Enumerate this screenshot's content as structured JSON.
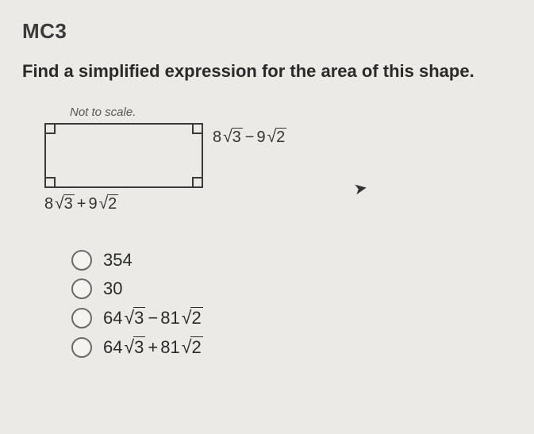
{
  "question_id": "MC3",
  "prompt": "Find a simplified expression for the area of this shape.",
  "figure": {
    "scale_label": "Not to scale.",
    "dim_right": {
      "a": "8",
      "rad_a": "3",
      "op": "−",
      "b": "9",
      "rad_b": "2"
    },
    "dim_bottom": {
      "a": "8",
      "rad_a": "3",
      "op": "+",
      "b": "9",
      "rad_b": "2"
    }
  },
  "options": [
    {
      "type": "plain",
      "text": "354"
    },
    {
      "type": "plain",
      "text": "30"
    },
    {
      "type": "expr",
      "a": "64",
      "rad_a": "3",
      "op": "−",
      "b": "81",
      "rad_b": "2"
    },
    {
      "type": "expr",
      "a": "64",
      "rad_a": "3",
      "op": "+",
      "b": "81",
      "rad_b": "2"
    }
  ]
}
